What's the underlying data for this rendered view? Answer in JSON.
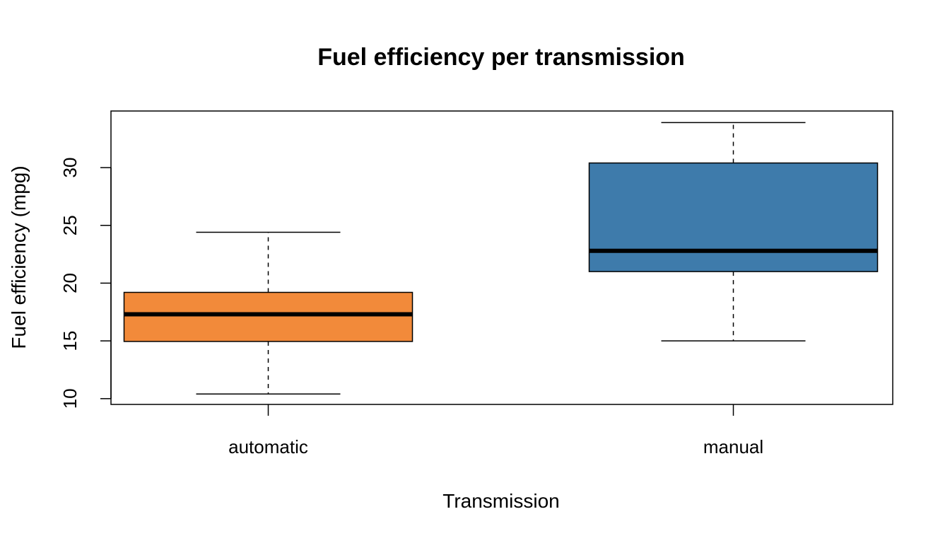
{
  "chart_data": {
    "type": "boxplot",
    "title": "Fuel efficiency per transmission",
    "xlabel": "Transmission",
    "ylabel": "Fuel efficiency (mpg)",
    "ylim": [
      9.5,
      34.9
    ],
    "yticks": [
      10,
      15,
      20,
      25,
      30
    ],
    "grid": false,
    "legend": "none",
    "categories": [
      "automatic",
      "manual"
    ],
    "colors": [
      "#F28A3A",
      "#3E7BAB"
    ],
    "boxes": [
      {
        "label": "automatic",
        "min": 10.4,
        "q1": 14.95,
        "median": 17.3,
        "q3": 19.2,
        "max": 24.4
      },
      {
        "label": "manual",
        "min": 15.0,
        "q1": 21.0,
        "median": 22.8,
        "q3": 30.4,
        "max": 33.9
      }
    ]
  }
}
